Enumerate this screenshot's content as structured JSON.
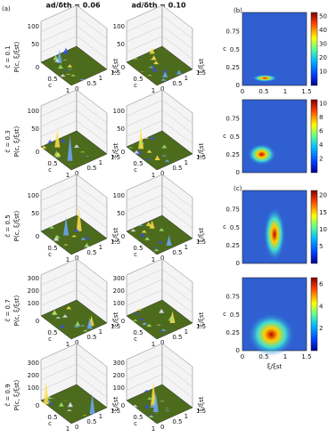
{
  "panel_labels": [
    "(a)",
    "(b)",
    "(c)"
  ],
  "column_headers": [
    "ad/δth = 0.06",
    "ad/δth = 0.10"
  ],
  "row_labels": [
    "c̃ = 0.1",
    "c̃ = 0.3",
    "c̃ = 0.5",
    "c̃ = 0.7",
    "c̃ = 0.9"
  ],
  "z_axis_label": "P(c, ξ/ξst)",
  "surface_zticks": [
    [
      "100",
      "50"
    ],
    [
      "100",
      "50"
    ],
    [
      "100",
      "50"
    ],
    [
      "300",
      "200",
      "100"
    ],
    [
      "300",
      "200",
      "100"
    ]
  ],
  "floor_axes": {
    "c_label": "c",
    "c_ticks": [
      "0",
      "0.5",
      "1"
    ],
    "xi_label": "ξ/ξst",
    "xi_ticks": [
      "0",
      "0.5",
      "1",
      "1.5"
    ]
  },
  "contour_y_label": "c",
  "contour_x_label": "ξ/ξst",
  "contour_plots": [
    {
      "yticks": [
        "0",
        "0.25",
        "0.5",
        "0.75"
      ],
      "xticks": [
        "0",
        "0.5",
        "1",
        "1.5"
      ],
      "colorbar_ticks": [
        "10",
        "20",
        "30",
        "40",
        "50"
      ]
    },
    {
      "yticks": [
        "0",
        "0.25",
        "0.5",
        "0.75"
      ],
      "colorbar_ticks": [
        "2",
        "4",
        "6",
        "8",
        "10"
      ]
    },
    {
      "yticks": [
        "0",
        "0.25",
        "0.5",
        "0.75"
      ],
      "colorbar_ticks": [
        "5",
        "10",
        "15",
        "20"
      ]
    },
    {
      "yticks": [
        "0",
        "0.25",
        "0.5",
        "0.75"
      ],
      "xticks": [
        "0",
        "0.5",
        "1",
        "1.5"
      ],
      "colorbar_ticks": [
        "2",
        "4",
        "6"
      ]
    }
  ]
}
